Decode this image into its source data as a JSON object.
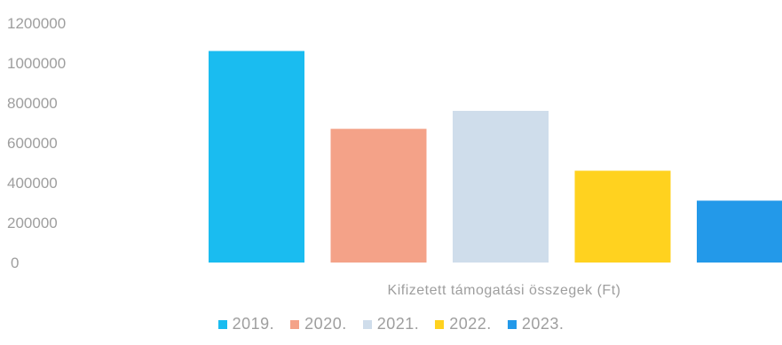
{
  "chart_data": {
    "type": "bar",
    "xlabel": "",
    "ylabel": "",
    "category_label": "Kifizetett támogatási összegek (Ft)",
    "ylim": [
      0,
      1200000
    ],
    "yticks": [
      "1200000",
      "1000000",
      "800000",
      "600000",
      "400000",
      "200000",
      "0"
    ],
    "grid": false,
    "legend_position": "bottom",
    "series": [
      {
        "name": "2019.",
        "value": 1060000,
        "color": "#1ABCF0"
      },
      {
        "name": "2020.",
        "value": 670000,
        "color": "#F4A288"
      },
      {
        "name": "2021.",
        "value": 760000,
        "color": "#CFDDEB"
      },
      {
        "name": "2022.",
        "value": 460000,
        "color": "#FFD21F"
      },
      {
        "name": "2023.",
        "value": 310000,
        "color": "#2399E9"
      }
    ]
  }
}
